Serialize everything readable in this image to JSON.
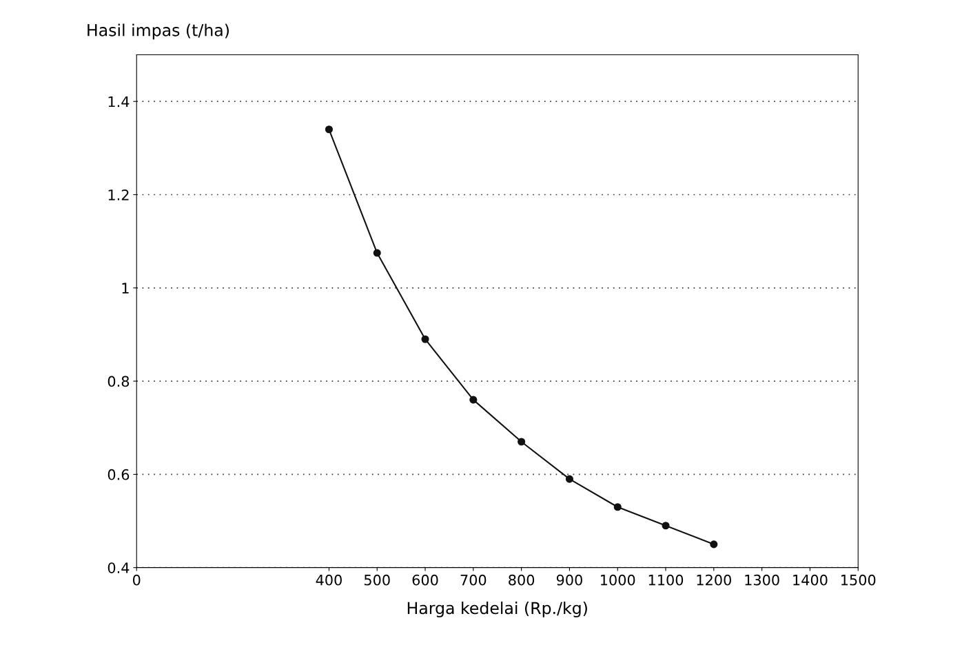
{
  "chart_data": {
    "type": "line",
    "ylabel": "Hasil impas (t/ha)",
    "xlabel": "Harga kedelai (Rp./kg)",
    "x": [
      400,
      500,
      600,
      700,
      800,
      900,
      1000,
      1100,
      1200
    ],
    "series": [
      {
        "color": "#111111",
        "values": [
          1.34,
          1.075,
          0.89,
          0.76,
          0.67,
          0.59,
          0.53,
          0.49,
          0.45
        ]
      }
    ],
    "xlim": [
      0,
      1500
    ],
    "xticks": [
      0,
      400,
      500,
      600,
      700,
      800,
      900,
      1000,
      1100,
      1200,
      1300,
      1400,
      1500
    ],
    "ylim": [
      0.4,
      1.5
    ],
    "yticks": [
      0.4,
      0.6,
      0.8,
      1,
      1.2,
      1.4
    ],
    "grid": "y",
    "marker": "circle",
    "line_style": "solid",
    "legend": false
  }
}
